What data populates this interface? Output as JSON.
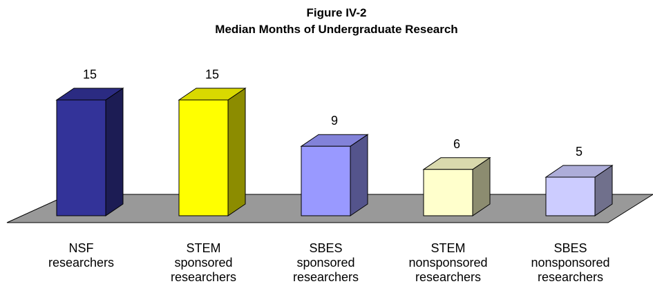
{
  "chart_data": {
    "type": "bar3d",
    "title": "Figure IV-2",
    "subtitle": "Median Months of Undergraduate Research",
    "categories": [
      [
        "NSF",
        "researchers"
      ],
      [
        "STEM",
        "sponsored",
        "researchers"
      ],
      [
        "SBES",
        "sponsored",
        "researchers"
      ],
      [
        "STEM",
        "nonsponsored",
        "researchers"
      ],
      [
        "SBES",
        "nonsponsored",
        "researchers"
      ]
    ],
    "values": [
      15,
      15,
      9,
      6,
      5
    ],
    "colors": [
      "#333399",
      "#ffff00",
      "#9999ff",
      "#ffffcc",
      "#ccccff"
    ]
  }
}
